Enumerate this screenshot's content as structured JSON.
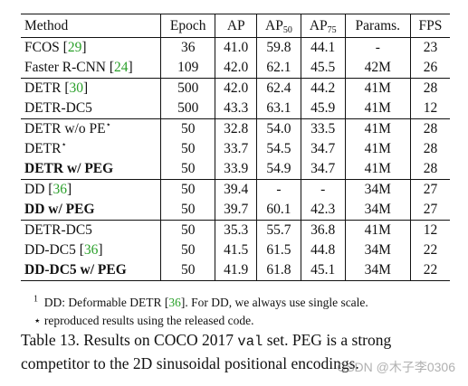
{
  "table": {
    "headers": {
      "method": "Method",
      "epoch": "Epoch",
      "ap": "AP",
      "ap50_base": "AP",
      "ap50_sub": "50",
      "ap75_base": "AP",
      "ap75_sub": "75",
      "params": "Params.",
      "fps": "FPS"
    },
    "groups": [
      [
        {
          "method": "FCOS",
          "cite": "29",
          "epoch": "36",
          "ap": "41.0",
          "ap50": "59.8",
          "ap75": "44.1",
          "params": "-",
          "fps": "23"
        },
        {
          "method": "Faster R-CNN",
          "cite": "24",
          "epoch": "109",
          "ap": "42.0",
          "ap50": "62.1",
          "ap75": "45.5",
          "params": "42M",
          "fps": "26"
        }
      ],
      [
        {
          "method": "DETR",
          "cite": "30",
          "epoch": "500",
          "ap": "42.0",
          "ap50": "62.4",
          "ap75": "44.2",
          "params": "41M",
          "fps": "28"
        },
        {
          "method": "DETR-DC5",
          "epoch": "500",
          "ap": "43.3",
          "ap50": "63.1",
          "ap75": "45.9",
          "params": "41M",
          "fps": "12"
        }
      ],
      [
        {
          "method": "DETR w/o PE",
          "mark": "⋆",
          "epoch": "50",
          "ap": "32.8",
          "ap50": "54.0",
          "ap75": "33.5",
          "params": "41M",
          "fps": "28"
        },
        {
          "method": "DETR",
          "mark": "⋆",
          "epoch": "50",
          "ap": "33.7",
          "ap50": "54.5",
          "ap75": "34.7",
          "params": "41M",
          "fps": "28"
        },
        {
          "method": "DETR w/ PEG",
          "bold": [
            "method",
            "ap",
            "ap50",
            "ap75"
          ],
          "epoch": "50",
          "ap": "33.9",
          "ap50": "54.9",
          "ap75": "34.7",
          "params": "41M",
          "fps": "28"
        }
      ],
      [
        {
          "method": "DD",
          "cite": "36",
          "epoch": "50",
          "ap": "39.4",
          "ap50": "-",
          "ap75": "-",
          "params": "34M",
          "fps": "27"
        },
        {
          "method": "DD w/ PEG",
          "bold": [
            "method",
            "ap"
          ],
          "epoch": "50",
          "ap": "39.7",
          "ap50": "60.1",
          "ap75": "42.3",
          "params": "34M",
          "fps": "27"
        }
      ],
      [
        {
          "method": "DETR-DC5",
          "epoch": "50",
          "ap": "35.3",
          "ap50": "55.7",
          "ap75": "36.8",
          "params": "41M",
          "fps": "12"
        },
        {
          "method": "DD-DC5",
          "cite": "36",
          "epoch": "50",
          "ap": "41.5",
          "ap50": "61.5",
          "ap75": "44.8",
          "params": "34M",
          "fps": "22"
        },
        {
          "method": "DD-DC5 w/ PEG",
          "bold": [
            "method",
            "ap",
            "ap50",
            "ap75"
          ],
          "epoch": "50",
          "ap": "41.9",
          "ap50": "61.8",
          "ap75": "45.1",
          "params": "34M",
          "fps": "22"
        }
      ]
    ]
  },
  "footnotes": {
    "fn1_mark": "1",
    "fn1_text_a": "DD: Deformable DETR [",
    "fn1_cite": "36",
    "fn1_text_b": "]. For DD, we always use single scale.",
    "fn2_mark": "⋆",
    "fn2_text": "reproduced results using the released code."
  },
  "caption": {
    "line1_a": "Table 13. Results on COCO 2017 ",
    "line1_mono": "val",
    "line1_b": " set. PEG is a strong",
    "line2": "competitor to the 2D sinusoidal positional encodings."
  },
  "watermark": "CSDN @木子李0306",
  "colors": {
    "citation": "#2aa02a"
  }
}
